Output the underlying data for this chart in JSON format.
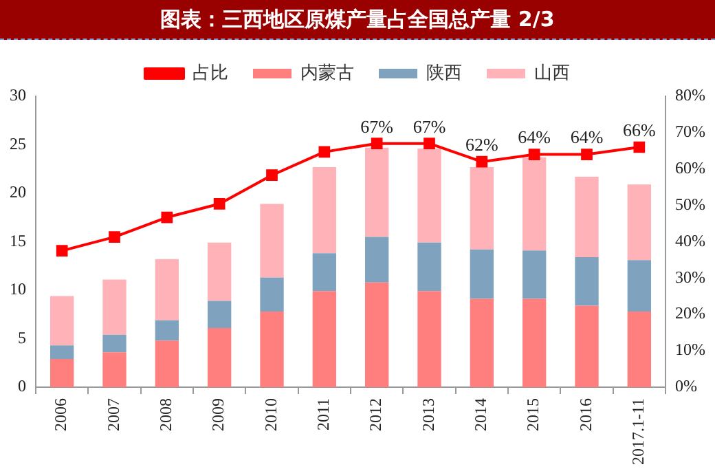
{
  "chart_data": {
    "type": "bar",
    "title": "图表：三西地区原煤产量占全国总产量 2/3",
    "stacked": true,
    "legend": "top",
    "grid": false,
    "categories": [
      "2006",
      "2007",
      "2008",
      "2009",
      "2010",
      "2011",
      "2012",
      "2013",
      "2014",
      "2015",
      "2016",
      "2017.1-11"
    ],
    "ylim": [
      0,
      30
    ],
    "yticks": [
      0,
      5,
      10,
      15,
      20,
      25,
      30
    ],
    "y2lim": [
      0,
      80
    ],
    "y2ticks": [
      {
        "value": 0,
        "label": "0%"
      },
      {
        "value": 10,
        "label": "10%"
      },
      {
        "value": 20,
        "label": "20%"
      },
      {
        "value": 30,
        "label": "30%"
      },
      {
        "value": 40,
        "label": "40%"
      },
      {
        "value": 50,
        "label": "50%"
      },
      {
        "value": 60,
        "label": "60%"
      },
      {
        "value": 70,
        "label": "70%"
      },
      {
        "value": 80,
        "label": "80%"
      }
    ],
    "series": [
      {
        "name": "内蒙古",
        "color": "#ff7f7f",
        "values": [
          2.9,
          3.6,
          4.8,
          6.1,
          7.8,
          9.9,
          10.8,
          9.9,
          9.1,
          9.1,
          8.4,
          7.8
        ]
      },
      {
        "name": "陕西",
        "color": "#7fa3bf",
        "values": [
          1.4,
          1.8,
          2.1,
          2.8,
          3.5,
          3.9,
          4.7,
          5.0,
          5.1,
          5.0,
          5.0,
          5.3
        ]
      },
      {
        "name": "山西",
        "color": "#ffb3b8",
        "values": [
          5.1,
          5.7,
          6.3,
          6.0,
          7.6,
          8.9,
          9.2,
          9.7,
          8.5,
          9.6,
          8.3,
          7.8
        ]
      },
      {
        "name": "占比",
        "type": "line",
        "axis": "y2",
        "marker": "square",
        "color": "#ff0000",
        "values": [
          37.5,
          41.3,
          46.7,
          50.4,
          58.3,
          64.7,
          67,
          67,
          62,
          64,
          64,
          66
        ],
        "value_labels": [
          null,
          null,
          null,
          null,
          null,
          null,
          "67%",
          "67%",
          "62%",
          "64%",
          "64%",
          "66%"
        ]
      }
    ]
  }
}
